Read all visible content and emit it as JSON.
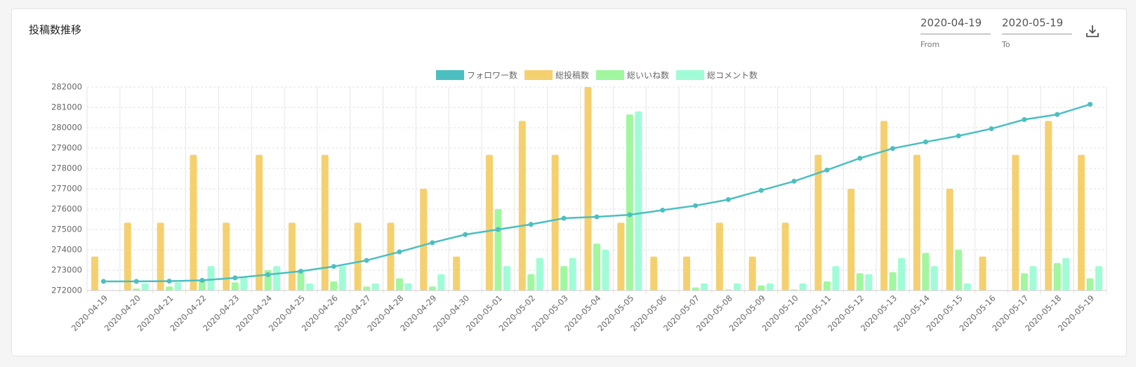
{
  "header": {
    "title": "投稿数推移"
  },
  "date_from": {
    "value": "2020-04-19",
    "label": "From"
  },
  "date_to": {
    "value": "2020-05-19",
    "label": "To"
  },
  "chart_data": {
    "type": "bar",
    "grid": true,
    "legend": "top",
    "categories": [
      "2020-04-19",
      "2020-04-20",
      "2020-04-21",
      "2020-04-22",
      "2020-04-23",
      "2020-04-24",
      "2020-04-25",
      "2020-04-26",
      "2020-04-27",
      "2020-04-28",
      "2020-04-29",
      "2020-04-30",
      "2020-05-01",
      "2020-05-02",
      "2020-05-03",
      "2020-05-04",
      "2020-05-05",
      "2020-05-06",
      "2020-05-07",
      "2020-05-08",
      "2020-05-09",
      "2020-05-10",
      "2020-05-11",
      "2020-05-12",
      "2020-05-13",
      "2020-05-14",
      "2020-05-15",
      "2020-05-16",
      "2020-05-17",
      "2020-05-18",
      "2020-05-19"
    ],
    "ylim": [
      272000,
      282000
    ],
    "yticks": [
      272000,
      273000,
      274000,
      275000,
      276000,
      277000,
      278000,
      279000,
      280000,
      281000,
      282000
    ],
    "y2lim": [
      0,
      6
    ],
    "series": [
      {
        "name": "フォロワー数",
        "type": "line",
        "color": "#4bbfc0",
        "values": [
          272450,
          272450,
          272460,
          272500,
          272620,
          272780,
          272950,
          273180,
          273480,
          273900,
          274350,
          274750,
          275000,
          275250,
          275550,
          275620,
          275720,
          275950,
          276170,
          276470,
          276920,
          277370,
          277920,
          278500,
          278980,
          279300,
          279600,
          279950,
          280400,
          280650,
          281150
        ]
      },
      {
        "name": "総投稿数",
        "type": "bar",
        "axis": "y2",
        "color": "#f5d06f",
        "values": [
          1,
          2,
          2,
          4,
          2,
          4,
          2,
          4,
          2,
          2,
          3,
          1,
          4,
          5,
          4,
          6,
          2,
          1,
          1,
          2,
          1,
          2,
          4,
          3,
          5,
          4,
          3,
          1,
          4,
          5,
          4
        ]
      },
      {
        "name": "総いいね数",
        "type": "bar",
        "axis": "y2",
        "color": "#a0f7a0",
        "values": [
          0,
          0.06,
          0.12,
          0.3,
          0.24,
          0.6,
          0.54,
          0.27,
          0.12,
          0.36,
          0.12,
          0,
          2.4,
          0.48,
          0.72,
          1.38,
          5.19,
          0,
          0.09,
          0.03,
          0.15,
          0.03,
          0.27,
          0.51,
          0.54,
          1.11,
          1.2,
          0,
          0.51,
          0.81,
          0.36
        ]
      },
      {
        "name": "総コメント数",
        "type": "bar",
        "axis": "y2",
        "color": "#a0fcd7",
        "values": [
          0,
          0.21,
          0.24,
          0.72,
          0.39,
          0.72,
          0.21,
          0.72,
          0.21,
          0.21,
          0.48,
          0,
          0.72,
          0.96,
          0.96,
          1.2,
          5.28,
          0,
          0.21,
          0.21,
          0.21,
          0.21,
          0.72,
          0.48,
          0.96,
          0.72,
          0.21,
          0,
          0.72,
          0.96,
          0.72
        ]
      }
    ]
  }
}
